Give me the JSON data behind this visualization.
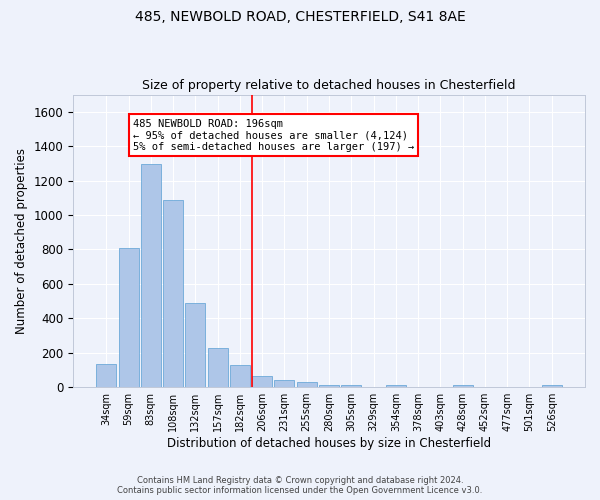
{
  "title1": "485, NEWBOLD ROAD, CHESTERFIELD, S41 8AE",
  "title2": "Size of property relative to detached houses in Chesterfield",
  "xlabel": "Distribution of detached houses by size in Chesterfield",
  "ylabel": "Number of detached properties",
  "bar_color": "#aec6e8",
  "bar_edge_color": "#5a9fd4",
  "categories": [
    "34sqm",
    "59sqm",
    "83sqm",
    "108sqm",
    "132sqm",
    "157sqm",
    "182sqm",
    "206sqm",
    "231sqm",
    "255sqm",
    "280sqm",
    "305sqm",
    "329sqm",
    "354sqm",
    "378sqm",
    "403sqm",
    "428sqm",
    "452sqm",
    "477sqm",
    "501sqm",
    "526sqm"
  ],
  "values": [
    135,
    810,
    1295,
    1090,
    490,
    230,
    130,
    65,
    40,
    28,
    15,
    10,
    0,
    15,
    0,
    0,
    10,
    0,
    0,
    0,
    10
  ],
  "ylim": [
    0,
    1700
  ],
  "yticks": [
    0,
    200,
    400,
    600,
    800,
    1000,
    1200,
    1400,
    1600
  ],
  "property_line_x": 6.56,
  "annotation_text": "485 NEWBOLD ROAD: 196sqm\n← 95% of detached houses are smaller (4,124)\n5% of semi-detached houses are larger (197) →",
  "annotation_box_color": "white",
  "annotation_box_edge_color": "red",
  "vline_color": "red",
  "background_color": "#eef2fb",
  "footer_text": "Contains HM Land Registry data © Crown copyright and database right 2024.\nContains public sector information licensed under the Open Government Licence v3.0.",
  "grid_color": "white",
  "figsize": [
    6.0,
    5.0
  ],
  "dpi": 100
}
